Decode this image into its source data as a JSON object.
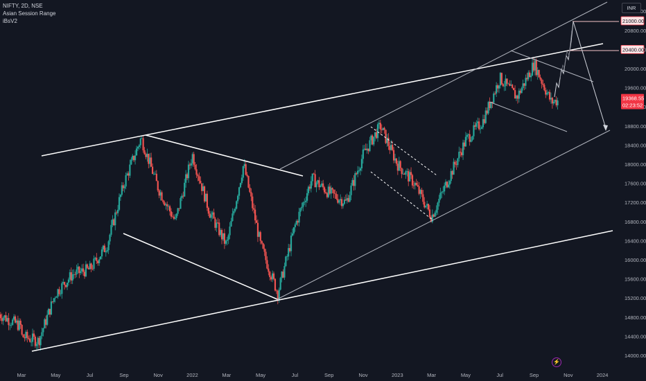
{
  "header": {
    "symbol_line": "NIFTY, 2D, NSE",
    "indicator_1": "Asian Session Range",
    "indicator_2": "iBsV2"
  },
  "currency_button": "INR",
  "colors": {
    "background": "#131722",
    "up": "#26a69a",
    "down": "#ef5350",
    "line": "#ffffff",
    "price_tag": "#f23645",
    "level_tag_border": "#f23645"
  },
  "icons": {
    "alert": "lightning-icon"
  },
  "chart_data": {
    "type": "candlestick",
    "title": "NIFTY, 2D, NSE",
    "y_ticks": [
      14000,
      14400,
      14800,
      15200,
      15600,
      16000,
      16400,
      16800,
      17200,
      17600,
      18000,
      18400,
      18800,
      19200,
      19600,
      20000,
      20400,
      20800,
      21200
    ],
    "x_ticks": [
      "Mar",
      "May",
      "Jul",
      "Sep",
      "Nov",
      "2022",
      "Mar",
      "May",
      "Jul",
      "Sep",
      "Nov",
      "2023",
      "Mar",
      "May",
      "Jul",
      "Sep",
      "Nov",
      "2024"
    ],
    "last_price": "19368.55",
    "countdown": "02:23:52",
    "levels": [
      {
        "label": "21000.00",
        "value": 21000
      },
      {
        "label": "20400.00",
        "value": 20400
      }
    ],
    "path_anchors": [
      {
        "date": "2021-03",
        "price": 14400
      },
      {
        "date": "2021-04",
        "price": 14300
      },
      {
        "date": "2021-05",
        "price": 15300
      },
      {
        "date": "2021-06",
        "price": 15700
      },
      {
        "date": "2021-07",
        "price": 15800
      },
      {
        "date": "2021-08",
        "price": 16300
      },
      {
        "date": "2021-09",
        "price": 17600
      },
      {
        "date": "2021-10",
        "price": 18550
      },
      {
        "date": "2021-11",
        "price": 17500
      },
      {
        "date": "2021-12",
        "price": 16800
      },
      {
        "date": "2022-01",
        "price": 18200
      },
      {
        "date": "2022-02",
        "price": 17000
      },
      {
        "date": "2022-03",
        "price": 16300
      },
      {
        "date": "2022-04",
        "price": 18000
      },
      {
        "date": "2022-05",
        "price": 16300
      },
      {
        "date": "2022-06",
        "price": 15300
      },
      {
        "date": "2022-07",
        "price": 16700
      },
      {
        "date": "2022-08",
        "price": 17700
      },
      {
        "date": "2022-09",
        "price": 17400
      },
      {
        "date": "2022-10",
        "price": 17200
      },
      {
        "date": "2022-11",
        "price": 18200
      },
      {
        "date": "2022-12",
        "price": 18800
      },
      {
        "date": "2023-01",
        "price": 18000
      },
      {
        "date": "2023-02",
        "price": 17600
      },
      {
        "date": "2023-03",
        "price": 16900
      },
      {
        "date": "2023-04",
        "price": 17700
      },
      {
        "date": "2023-05",
        "price": 18500
      },
      {
        "date": "2023-06",
        "price": 18900
      },
      {
        "date": "2023-07",
        "price": 19800
      },
      {
        "date": "2023-08",
        "price": 19400
      },
      {
        "date": "2023-09",
        "price": 20100
      },
      {
        "date": "2023-10",
        "price": 19300
      },
      {
        "date": "2023-11",
        "price": 19370
      }
    ]
  }
}
